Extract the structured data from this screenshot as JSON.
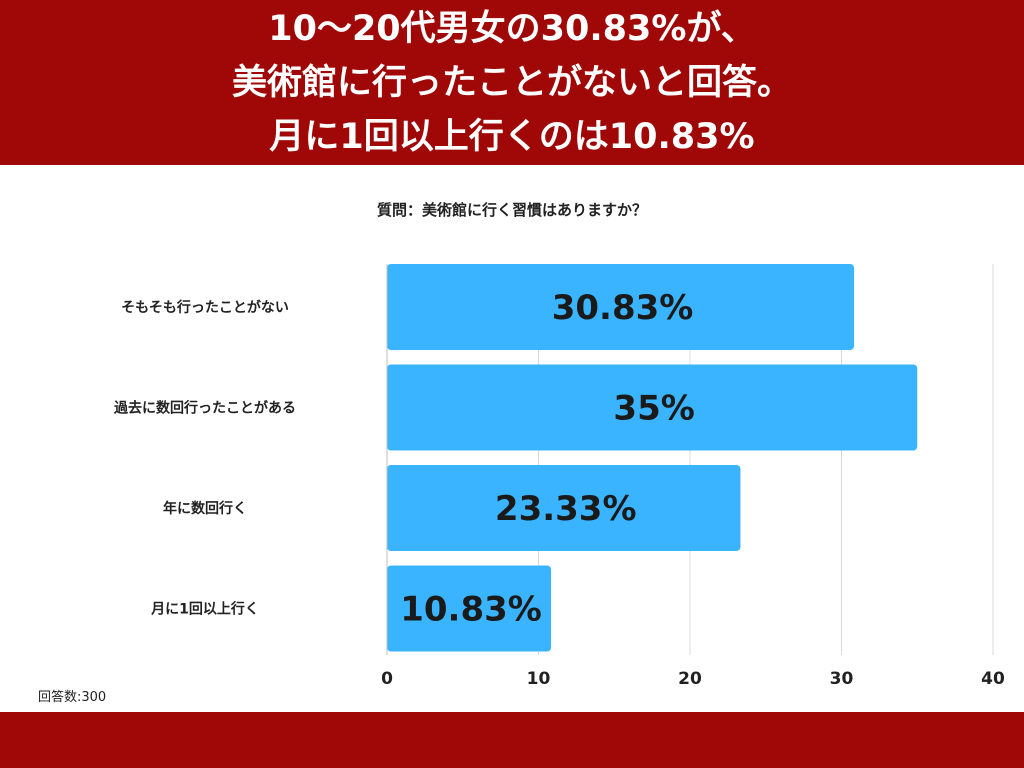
{
  "header": {
    "lines": [
      "10〜20代男女の30.83%が、",
      "美術館に行ったことがないと回答。",
      "月に1回以上行くのは10.83%"
    ]
  },
  "question": "質問：美術館に行く習慣はありますか？",
  "footnote": "回答数:300",
  "colors": {
    "brand": "#a00808",
    "bar": "#3ab4ff",
    "grid": "#d9d9d9"
  },
  "chart_data": {
    "type": "bar",
    "orientation": "horizontal",
    "categories": [
      "そもそも行ったことがない",
      "過去に数回行ったことがある",
      "年に数回行く",
      "月に1回以上行く"
    ],
    "values": [
      30.83,
      35,
      23.33,
      10.83
    ],
    "data_labels": [
      "30.83%",
      "35%",
      "23.33%",
      "10.83%"
    ],
    "xlim": [
      0,
      40
    ],
    "xticks": [
      0,
      10,
      20,
      30,
      40
    ],
    "grid": true,
    "legend": "none"
  }
}
